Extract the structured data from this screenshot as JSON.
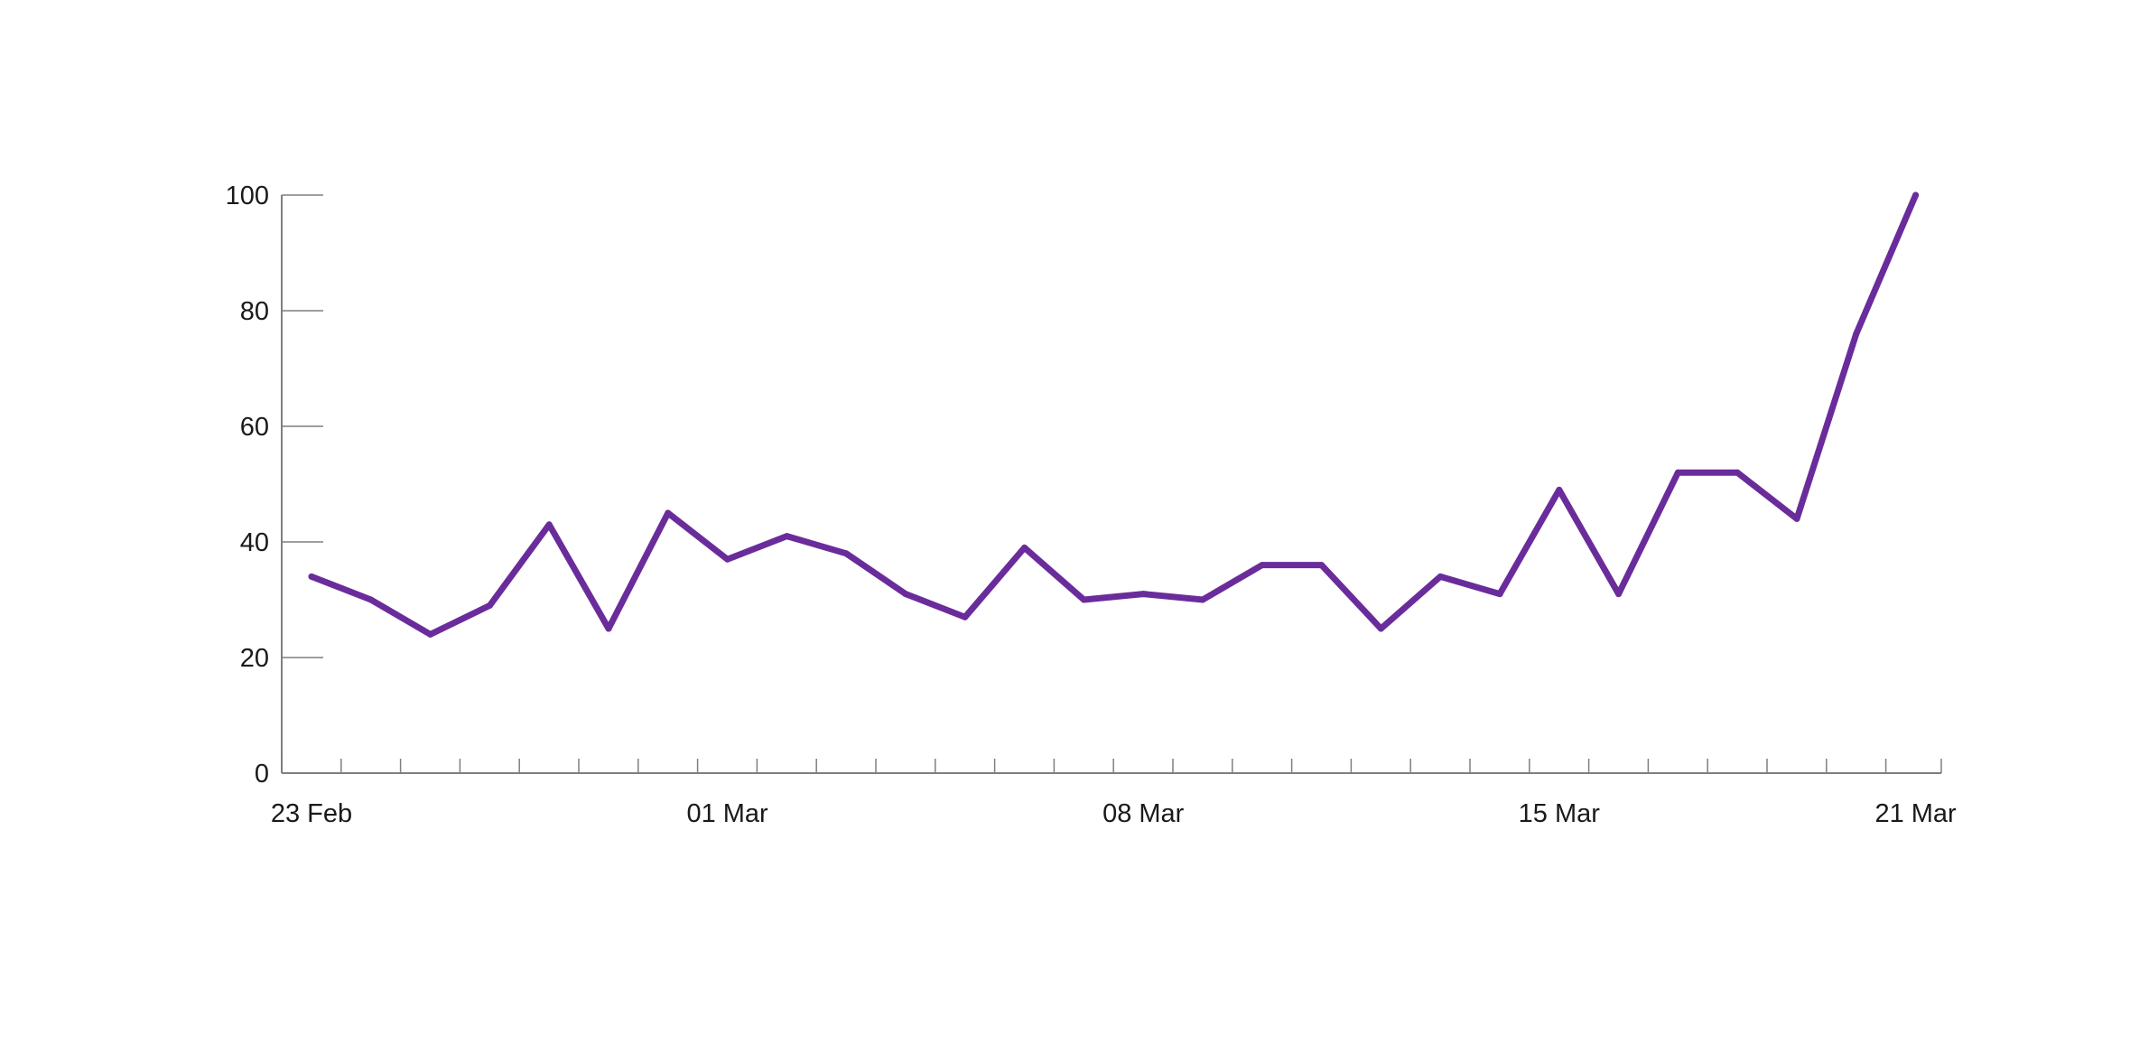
{
  "chart_data": {
    "type": "line",
    "title": "",
    "xlabel": "",
    "ylabel": "",
    "x": [
      "2020-02-23",
      "2020-02-24",
      "2020-02-25",
      "2020-02-26",
      "2020-02-27",
      "2020-02-28",
      "2020-02-29",
      "2020-03-01",
      "2020-03-02",
      "2020-03-03",
      "2020-03-04",
      "2020-03-05",
      "2020-03-06",
      "2020-03-07",
      "2020-03-08",
      "2020-03-09",
      "2020-03-10",
      "2020-03-11",
      "2020-03-12",
      "2020-03-13",
      "2020-03-14",
      "2020-03-15",
      "2020-03-16",
      "2020-03-17",
      "2020-03-18",
      "2020-03-19",
      "2020-03-20",
      "2020-03-21"
    ],
    "series": [
      {
        "values": [
          34,
          30,
          24,
          29,
          43,
          25,
          45,
          37,
          41,
          38,
          31,
          27,
          39,
          30,
          31,
          30,
          36,
          36,
          25,
          34,
          31,
          49,
          31,
          52,
          52,
          44,
          76,
          100
        ]
      }
    ],
    "ylim": [
      0,
      100
    ],
    "y_ticks": [
      "0",
      "20",
      "40",
      "60",
      "80",
      "100"
    ],
    "x_tick_labels": [
      {
        "index": 0,
        "label": "23 Feb"
      },
      {
        "index": 7,
        "label": "01 Mar"
      },
      {
        "index": 14,
        "label": "08 Mar"
      },
      {
        "index": 21,
        "label": "15 Mar"
      },
      {
        "index": 27,
        "label": "21 Mar"
      }
    ],
    "grid": false,
    "legend": "none",
    "colors": {
      "line": "#6a2c9b",
      "axis": "#7f7f7f",
      "text": "#1a1a1a"
    }
  }
}
